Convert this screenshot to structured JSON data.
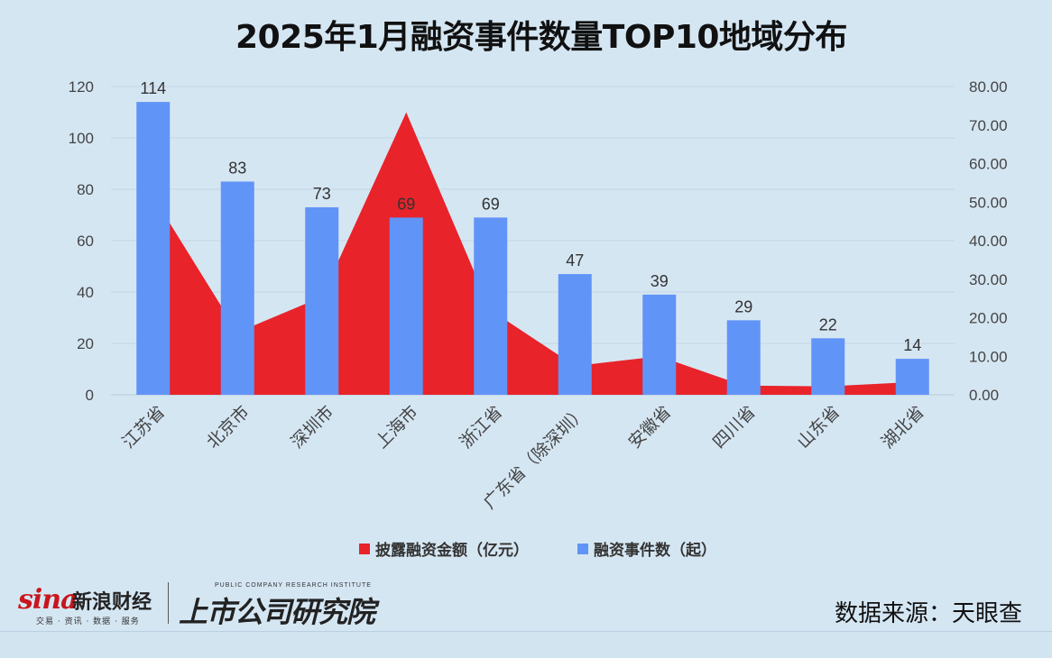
{
  "chart_data": {
    "type": "bar",
    "title": "2025年1月融资事件数量TOP10地域分布",
    "categories": [
      "江苏省",
      "北京市",
      "深圳市",
      "上海市",
      "浙江省",
      "广东省（除深圳）",
      "安徽省",
      "四川省",
      "山东省",
      "湖北省"
    ],
    "series": [
      {
        "name": "融资事件数（起）",
        "kind": "bar",
        "axis": "left",
        "color": "#6194f7",
        "values": [
          114,
          83,
          73,
          69,
          69,
          47,
          39,
          29,
          22,
          14
        ],
        "data_labels": [
          "114",
          "83",
          "73",
          "69",
          "69",
          "47",
          "39",
          "29",
          "22",
          "14"
        ]
      },
      {
        "name": "披露融资金额（亿元）",
        "kind": "area",
        "axis": "right",
        "color": "#e8232a",
        "values": [
          51.5,
          16.2,
          25.4,
          73.3,
          22.0,
          7.5,
          10.0,
          2.4,
          2.2,
          3.3
        ]
      }
    ],
    "left_axis": {
      "ylim": [
        0,
        120
      ],
      "ticks": [
        "0",
        "20",
        "40",
        "60",
        "80",
        "100",
        "120"
      ]
    },
    "right_axis": {
      "ylim": [
        0,
        80
      ],
      "ticks": [
        "0.00",
        "10.00",
        "20.00",
        "30.00",
        "40.00",
        "50.00",
        "60.00",
        "70.00",
        "80.00"
      ]
    },
    "legend_position": "bottom",
    "grid": true
  },
  "footer": {
    "sina_brand": "sina",
    "sina_name": "新浪财经",
    "sina_tagline": "交易 · 资讯 · 数据 · 服务",
    "institute_tagline": "PUBLIC COMPANY RESEARCH INSTITUTE",
    "institute_name": "上市公司研究院",
    "source": "数据来源：天眼查"
  },
  "colors": {
    "background": "#d5e6f3",
    "bar": "#6194f7",
    "area": "#e8232a"
  }
}
